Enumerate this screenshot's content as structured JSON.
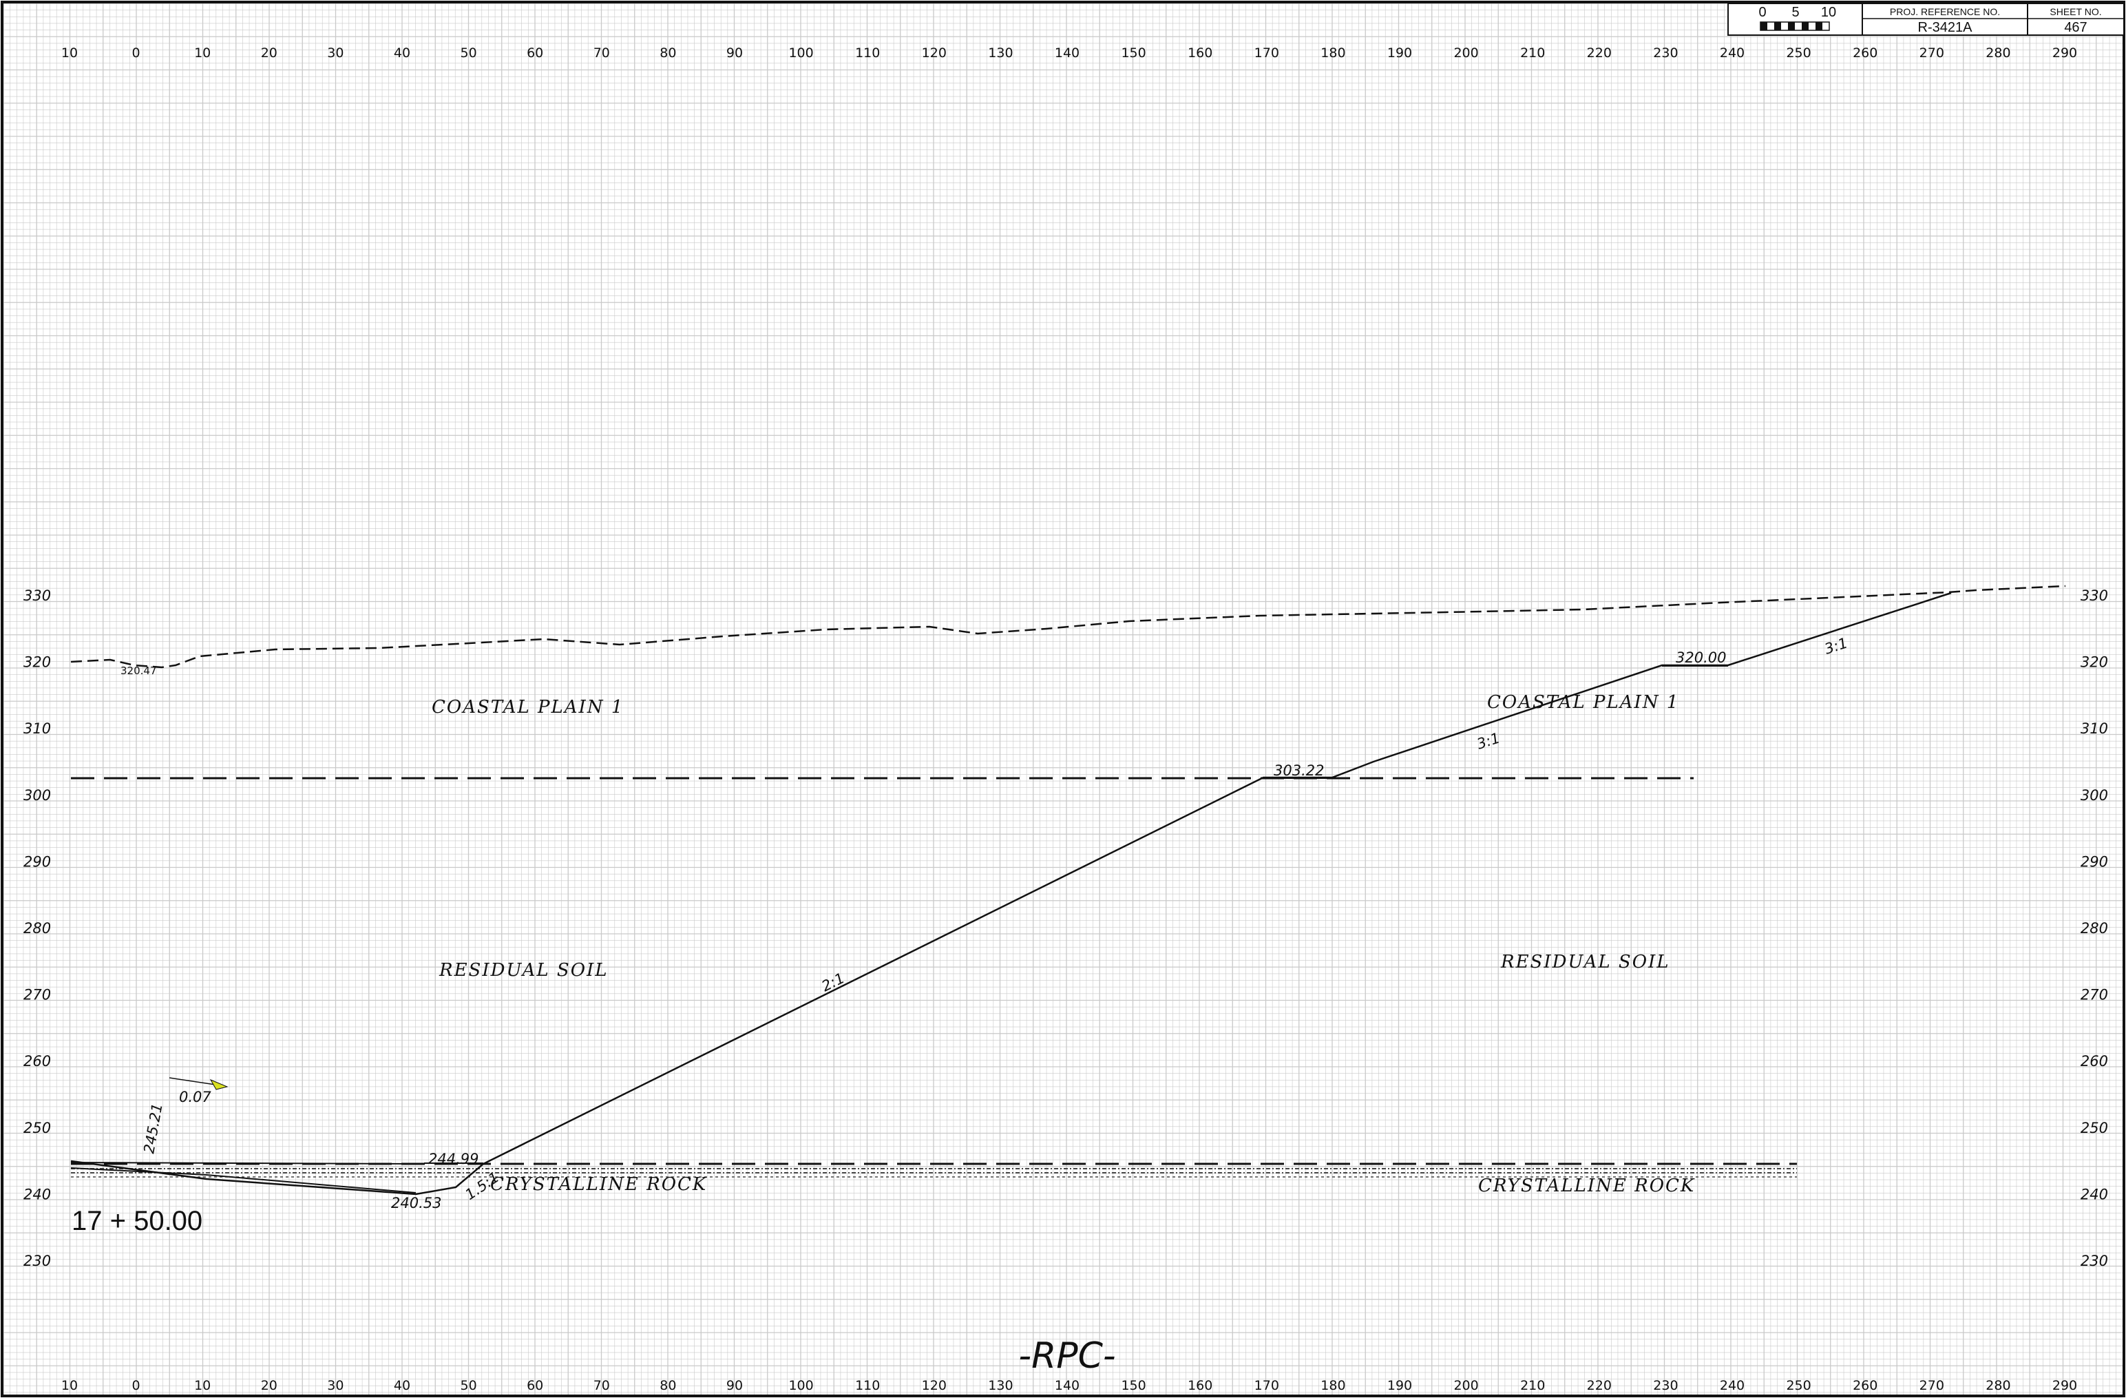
{
  "title_block": {
    "scale_labels": [
      "0",
      "5",
      "10"
    ],
    "proj_ref_label": "PROJ. REFERENCE NO.",
    "proj_ref_value": "R-3421A",
    "sheet_no_label": "SHEET NO.",
    "sheet_no_value": "467"
  },
  "offset_labels": [
    "10",
    "0",
    "10",
    "20",
    "30",
    "40",
    "50",
    "60",
    "70",
    "80",
    "90",
    "100",
    "110",
    "120",
    "130",
    "140",
    "150",
    "160",
    "170",
    "180",
    "190",
    "200",
    "210",
    "220",
    "230",
    "240",
    "250",
    "260",
    "270",
    "280",
    "290"
  ],
  "elevation_labels": [
    "330",
    "320",
    "310",
    "300",
    "290",
    "280",
    "270",
    "260",
    "250",
    "240",
    "230"
  ],
  "zones": {
    "coastal_plain_left": "COASTAL  PLAIN  1",
    "coastal_plain_right": "COASTAL  PLAIN  1",
    "residual_soil_left": "RESIDUAL  SOIL",
    "residual_soil_right": "RESIDUAL  SOIL",
    "crystalline_rock_left": "CRYSTALLINE  ROCK",
    "crystalline_rock_right": "CRYSTALLINE  ROCK"
  },
  "annotations": {
    "elev_320_47": "320.47",
    "elev_303_22": "303.22",
    "elev_320_00": "320.00",
    "elev_244_99": "244.99",
    "elev_240_53": "240.53",
    "elev_245_21": "245.21",
    "grade_0_07": "0.07",
    "slope_2_1": "2:1",
    "slope_3_1_lower": "3:1",
    "slope_3_1_upper": "3:1",
    "slope_1_5_1": "1.5:1"
  },
  "station": "17 + 50.00",
  "footer": "-RPC-",
  "colors": {
    "grid": "#c9c9c9",
    "line": "#111111",
    "accent": "#d9e021"
  }
}
